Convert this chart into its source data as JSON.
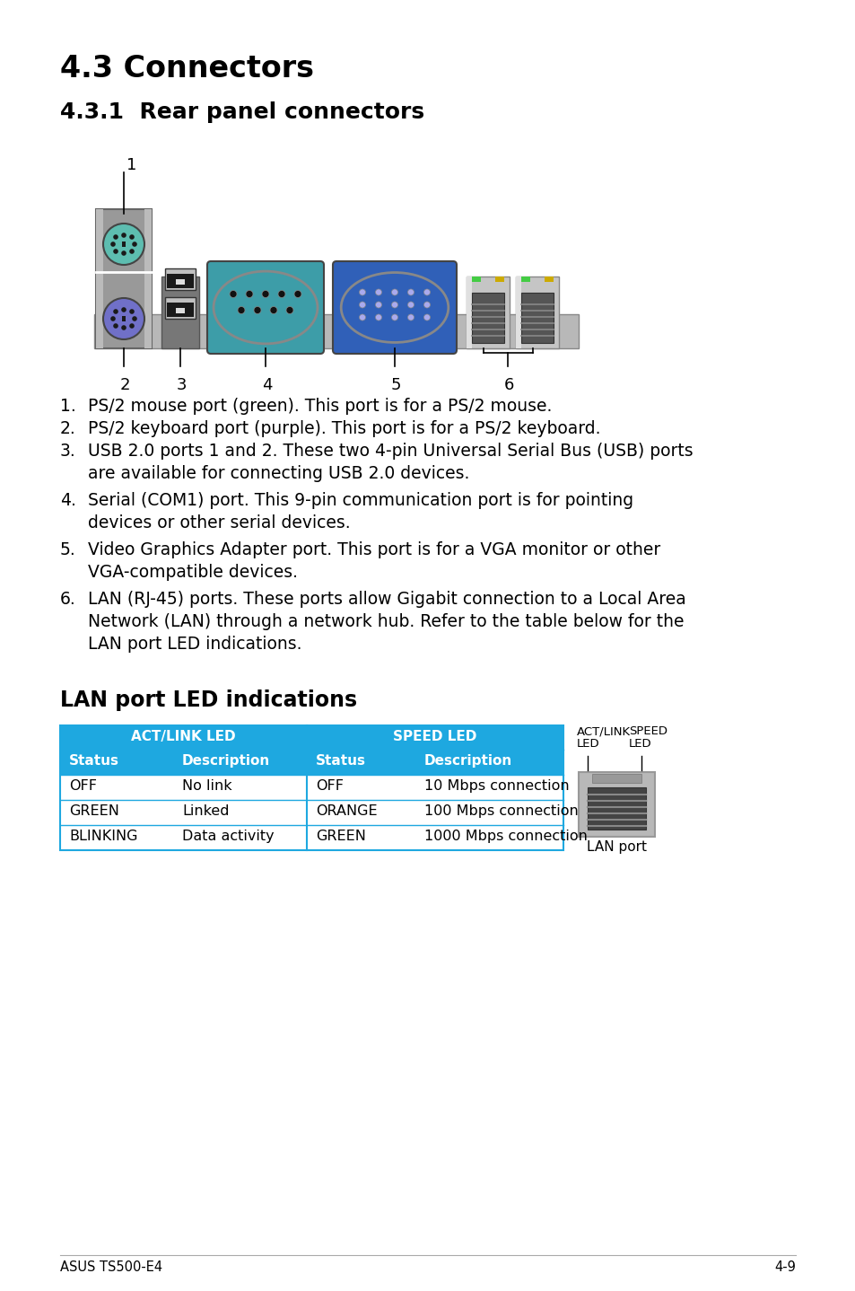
{
  "title1": "4.3 Connectors",
  "title2": "4.3.1  Rear panel connectors",
  "lan_title": "LAN port LED indications",
  "table_header_bg": "#1ea8e0",
  "table_border": "#1ea8e0",
  "page_bg": "#ffffff",
  "footer_left": "ASUS TS500-E4",
  "footer_right": "4-9",
  "act_link_rows": [
    [
      "OFF",
      "No link"
    ],
    [
      "GREEN",
      "Linked"
    ],
    [
      "BLINKING",
      "Data activity"
    ]
  ],
  "speed_rows": [
    [
      "OFF",
      "10 Mbps connection"
    ],
    [
      "ORANGE",
      "100 Mbps connection"
    ],
    [
      "GREEN",
      "1000 Mbps connection"
    ]
  ],
  "list_items": [
    [
      "PS/2 mouse port (green). This port is for a PS/2 mouse."
    ],
    [
      "PS/2 keyboard port (purple). This port is for a PS/2 keyboard."
    ],
    [
      "USB 2.0 ports 1 and 2. These two 4-pin Universal Serial Bus (USB) ports",
      "are available for connecting USB 2.0 devices."
    ],
    [
      "Serial (COM1) port. This 9-pin communication port is for pointing",
      "devices or other serial devices."
    ],
    [
      "Video Graphics Adapter port. This port is for a VGA monitor or other",
      "VGA-compatible devices."
    ],
    [
      "LAN (RJ-45) ports. These ports allow Gigabit connection to a Local Area",
      "Network (LAN) through a network hub. Refer to the table below for the",
      "LAN port LED indications."
    ]
  ]
}
